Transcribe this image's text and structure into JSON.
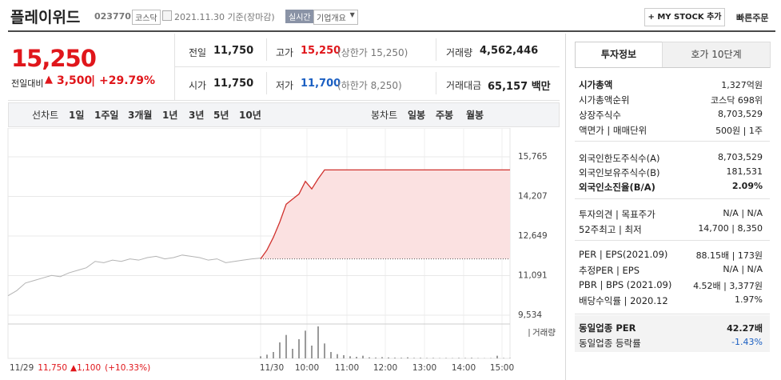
{
  "header": {
    "name": "플레이위드",
    "code": "023770",
    "market": "코스닥",
    "date": "2021.11.30 기준(장마감)",
    "realtime": "실시간",
    "company": "기업개요",
    "mystock": "+ MY STOCK 추가",
    "quick_order": "빠른주문"
  },
  "quote": {
    "price": "15,250",
    "change_label": "전일대비",
    "change": "3,500",
    "change_pct": "+29.79%",
    "items": [
      {
        "label": "전일",
        "value": "11,750"
      },
      {
        "label": "시가",
        "value": "11,750"
      },
      {
        "label": "고가",
        "value": "15,250",
        "note": "(상한가 15,250)"
      },
      {
        "label": "저가",
        "value": "11,700",
        "note": "(하한가 8,250)"
      },
      {
        "label": "거래량",
        "value": "4,562,446"
      },
      {
        "label": "거래대금",
        "value": "65,157 백만"
      }
    ]
  },
  "tabs": {
    "line_label": "선차트",
    "line": [
      "1일",
      "1주일",
      "3개월",
      "1년",
      "3년",
      "5년",
      "10년"
    ],
    "candle_label": "봉차트",
    "candle": [
      "일봉",
      "주봉",
      "월봉"
    ]
  },
  "chart_data": {
    "type": "line",
    "ylim": [
      9251,
      16520
    ],
    "yticks": [
      {
        "value": 15765,
        "label": "15,765"
      },
      {
        "value": 14207,
        "label": "14,207"
      },
      {
        "value": 12649,
        "label": "12,649"
      },
      {
        "value": 11091,
        "label": "11,091"
      },
      {
        "value": 9534,
        "label": "9,534"
      }
    ],
    "baseline": 11750,
    "x_labels": [
      "11/30",
      "10:00",
      "11:00",
      "12:00",
      "13:00",
      "14:00",
      "15:00"
    ],
    "prev_note": {
      "date": "11/29",
      "close": "11,750",
      "change": "1,100",
      "pct": "(+10.33%)"
    },
    "series": [
      {
        "color": "#b4b4b4",
        "values": [
          10300,
          10500,
          10800,
          10900,
          11000,
          11100,
          11050,
          11200,
          11300,
          11400,
          11650,
          11600,
          11700,
          11650,
          11750,
          11700,
          11800,
          11850,
          11750,
          11800,
          11900,
          11850,
          11800,
          11700,
          11750,
          11600,
          11650,
          11700,
          11750,
          11780
        ]
      },
      {
        "color": "#d0312d",
        "fill": "#fbe1e1",
        "values": [
          11750,
          12100,
          12600,
          13200,
          13900,
          14100,
          14300,
          14800,
          14500,
          14900,
          15250,
          15250,
          15250,
          15250,
          15250,
          15250,
          15250,
          15250,
          15250,
          15250,
          15250,
          15250,
          15250,
          15250,
          15250,
          15250,
          15250,
          15250,
          15250,
          15250,
          15250,
          15250,
          15250,
          15250,
          15250,
          15250,
          15250,
          15250,
          15250,
          15250
        ]
      }
    ],
    "volume": {
      "name": "거래량",
      "color": "#9a9a9a",
      "values": [
        20000,
        35000,
        60000,
        150000,
        220000,
        90000,
        180000,
        260000,
        120000,
        300000,
        140000,
        60000,
        40000,
        30000,
        20000,
        15000,
        25000,
        10000,
        8000,
        12000,
        9000,
        7000,
        6000,
        10000,
        5000,
        6000,
        4000,
        5000,
        3000,
        4000,
        3000,
        5000,
        4000,
        6000,
        3000,
        2000,
        3000,
        25000,
        4000,
        3000
      ]
    }
  },
  "info": {
    "tabs": [
      "투자정보",
      "호가 10단계"
    ],
    "groups": [
      {
        "rows": [
          {
            "label": "시가총액",
            "value": "1,327억원"
          },
          {
            "label": "시가총액순위",
            "value": "코스닥 698위"
          },
          {
            "label": "상장주식수",
            "value": "8,703,529"
          },
          {
            "label": "액면가 | 매매단위",
            "value": "500원 | 1주"
          }
        ]
      },
      {
        "rows": [
          {
            "label": "외국인한도주식수(A)",
            "value": "8,703,529"
          },
          {
            "label": "외국인보유주식수(B)",
            "value": "181,531"
          },
          {
            "label": "외국인소진율(B/A)",
            "value": "2.09%"
          }
        ]
      },
      {
        "rows": [
          {
            "label": "투자의견 | 목표주가",
            "value": "N/A | N/A"
          },
          {
            "label": "52주최고 | 최저",
            "value": "14,700 | 8,350"
          }
        ]
      },
      {
        "rows": [
          {
            "label": "PER | EPS(2021.09)",
            "value": "88.15배 | 173원"
          },
          {
            "label": "추정PER | EPS",
            "value": "N/A | N/A"
          },
          {
            "label": "PBR | BPS (2021.09)",
            "value": "4.52배 | 3,377원"
          },
          {
            "label": "배당수익률 | 2020.12",
            "value": "1.97%"
          }
        ]
      },
      {
        "rows": [
          {
            "label": "동일업종 PER",
            "value": "42.27배"
          },
          {
            "label": "동일업종 등락률",
            "value": "-1.43%"
          }
        ]
      }
    ]
  }
}
